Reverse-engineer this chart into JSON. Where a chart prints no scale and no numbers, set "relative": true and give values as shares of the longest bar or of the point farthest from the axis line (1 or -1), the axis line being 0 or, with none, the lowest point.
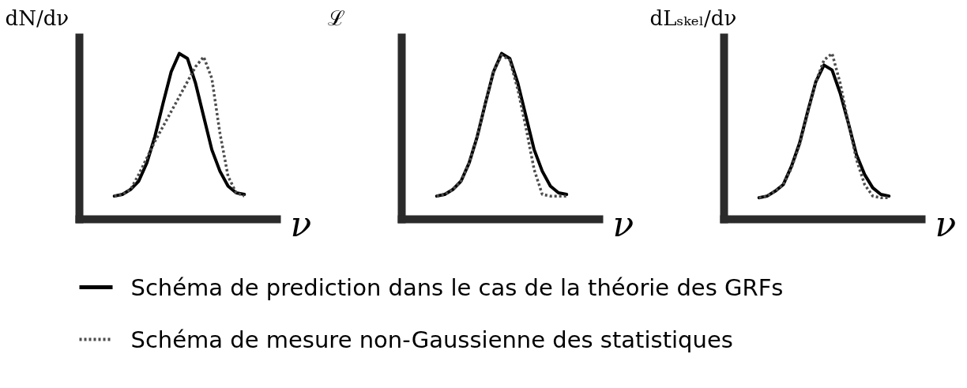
{
  "chart_data": [
    {
      "type": "line",
      "relative": true,
      "xlabel": "ν",
      "ylabel": "dN/dν",
      "legend": "bottom",
      "categories": [
        null,
        null,
        null,
        null,
        null,
        null,
        null,
        null,
        null,
        null,
        null,
        null,
        null,
        null,
        null,
        null,
        null
      ],
      "series": [
        {
          "name": "Schéma de prediction dans le cas de la théorie des GRFs",
          "color": "#000000",
          "line_style": "solid",
          "values": [
            0.14,
            0.15,
            0.18,
            0.23,
            0.34,
            0.5,
            0.7,
            0.89,
            1.0,
            0.97,
            0.82,
            0.62,
            0.42,
            0.29,
            0.2,
            0.16,
            0.15
          ]
        },
        {
          "name": "Schéma de mesure non-Gaussienne des statistiques",
          "color": "#4d4d4d",
          "line_style": "dotted",
          "values": [
            0.14,
            0.15,
            0.18,
            0.27,
            0.37,
            0.47,
            0.56,
            0.65,
            0.74,
            0.83,
            0.92,
            0.98,
            0.85,
            0.52,
            0.26,
            0.16,
            0.14
          ]
        }
      ]
    },
    {
      "type": "line",
      "relative": true,
      "xlabel": "ν",
      "ylabel": "ℒ",
      "legend": "bottom",
      "categories": [
        null,
        null,
        null,
        null,
        null,
        null,
        null,
        null,
        null,
        null,
        null,
        null,
        null,
        null,
        null,
        null,
        null
      ],
      "series": [
        {
          "name": "Schéma de prediction dans le cas de la théorie des GRFs",
          "color": "#000000",
          "line_style": "solid",
          "values": [
            0.14,
            0.15,
            0.18,
            0.23,
            0.34,
            0.5,
            0.7,
            0.89,
            1.0,
            0.97,
            0.82,
            0.62,
            0.42,
            0.29,
            0.2,
            0.16,
            0.15
          ]
        },
        {
          "name": "Schéma de mesure non-Gaussienne des statistiques",
          "color": "#4d4d4d",
          "line_style": "dotted",
          "values": [
            0.14,
            0.15,
            0.18,
            0.23,
            0.34,
            0.5,
            0.7,
            0.89,
            0.99,
            0.96,
            0.78,
            0.55,
            0.3,
            0.15,
            0.14,
            0.14,
            0.14
          ]
        }
      ]
    },
    {
      "type": "line",
      "relative": true,
      "xlabel": "ν",
      "ylabel": "dLₛₖₑₗ/dν",
      "legend": "bottom",
      "categories": [
        null,
        null,
        null,
        null,
        null,
        null,
        null,
        null,
        null,
        null,
        null,
        null,
        null,
        null,
        null,
        null,
        null
      ],
      "series": [
        {
          "name": "Schéma de prediction dans le cas de la théorie des GRFs",
          "color": "#000000",
          "line_style": "solid",
          "values": [
            0.13,
            0.14,
            0.17,
            0.21,
            0.32,
            0.46,
            0.65,
            0.83,
            0.93,
            0.9,
            0.76,
            0.58,
            0.39,
            0.27,
            0.19,
            0.15,
            0.14
          ]
        },
        {
          "name": "Schéma de mesure non-Gaussienne des statistiques",
          "color": "#4d4d4d",
          "line_style": "dotted",
          "values": [
            0.13,
            0.14,
            0.17,
            0.21,
            0.31,
            0.45,
            0.64,
            0.83,
            0.96,
            1.0,
            0.82,
            0.58,
            0.36,
            0.21,
            0.14,
            0.13,
            0.13
          ]
        }
      ]
    }
  ]
}
